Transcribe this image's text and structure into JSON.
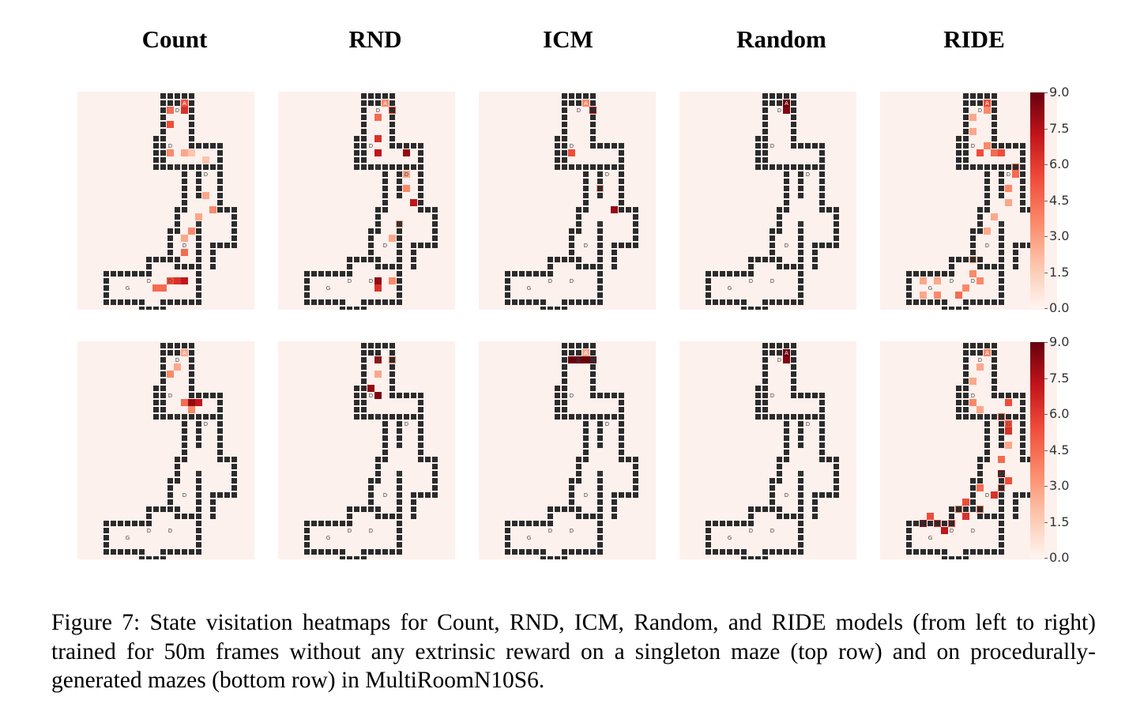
{
  "columns": [
    "Count",
    "RND",
    "ICM",
    "Random",
    "RIDE"
  ],
  "colorbar": {
    "ticks": [
      "9.0",
      "7.5",
      "6.0",
      "4.5",
      "3.0",
      "1.5",
      "0.0"
    ],
    "colormap": "Reds",
    "range": [
      0,
      9
    ]
  },
  "maze_labels": {
    "agent": "A",
    "door": "D",
    "goal": "G"
  },
  "colors": {
    "wall": "#2b2b2b",
    "panel_bg": "#fdf1ed"
  },
  "caption": "Figure 7: State visitation heatmaps for Count, RND, ICM, Random, and RIDE models (from left to right) trained for 50m frames without any extrinsic reward on a singleton maze (top row) and on procedurally-generated mazes (bottom row) in MultiRoomN10S6."
}
